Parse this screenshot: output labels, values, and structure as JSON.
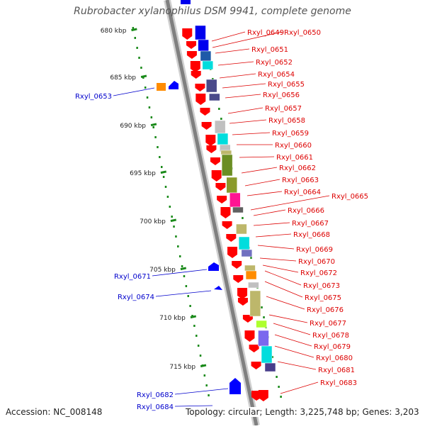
{
  "title": "Rubrobacter xylanophilus DSM 9941, complete genome",
  "footer": {
    "accession": "Accession: NC_008148",
    "summary": "Topology: circular; Length: 3,225,748 bp; Genes: 3,203"
  },
  "ruler": {
    "ticks": [
      {
        "label": "680 kbp",
        "kbp": 680
      },
      {
        "label": "685 kbp",
        "kbp": 685
      },
      {
        "label": "690 kbp",
        "kbp": 690
      },
      {
        "label": "695 kbp",
        "kbp": 695
      },
      {
        "label": "700 kbp",
        "kbp": 700
      },
      {
        "label": "705 kbp",
        "kbp": 705
      },
      {
        "label": "710 kbp",
        "kbp": 710
      },
      {
        "label": "715 kbp",
        "kbp": 715
      }
    ]
  },
  "genes_right": [
    {
      "name": "Rxyl_0649"
    },
    {
      "name": "Rxyl_0650"
    },
    {
      "name": "Rxyl_0651"
    },
    {
      "name": "Rxyl_0652"
    },
    {
      "name": "Rxyl_0654"
    },
    {
      "name": "Rxyl_0655"
    },
    {
      "name": "Rxyl_0656"
    },
    {
      "name": "Rxyl_0657"
    },
    {
      "name": "Rxyl_0658"
    },
    {
      "name": "Rxyl_0659"
    },
    {
      "name": "Rxyl_0660"
    },
    {
      "name": "Rxyl_0661"
    },
    {
      "name": "Rxyl_0662"
    },
    {
      "name": "Rxyl_0663"
    },
    {
      "name": "Rxyl_0664"
    },
    {
      "name": "Rxyl_0665"
    },
    {
      "name": "Rxyl_0666"
    },
    {
      "name": "Rxyl_0667"
    },
    {
      "name": "Rxyl_0668"
    },
    {
      "name": "Rxyl_0669"
    },
    {
      "name": "Rxyl_0670"
    },
    {
      "name": "Rxyl_0672"
    },
    {
      "name": "Rxyl_0673"
    },
    {
      "name": "Rxyl_0675"
    },
    {
      "name": "Rxyl_0676"
    },
    {
      "name": "Rxyl_0677"
    },
    {
      "name": "Rxyl_0678"
    },
    {
      "name": "Rxyl_0679"
    },
    {
      "name": "Rxyl_0680"
    },
    {
      "name": "Rxyl_0681"
    },
    {
      "name": "Rxyl_0683"
    }
  ],
  "genes_left": [
    {
      "name": "Rxyl_0653"
    },
    {
      "name": "Rxyl_0671"
    },
    {
      "name": "Rxyl_0674"
    },
    {
      "name": "Rxyl_0682"
    },
    {
      "name": "Rxyl_0684"
    }
  ],
  "colors": {
    "forward_gene": "#ff0000",
    "reverse_gene": "#0000ff",
    "orange_gene": "#ff8c00",
    "backbone": "#808080",
    "ruler_dots": "#1a8a1a",
    "right_label": "#dd0000",
    "left_label": "#0000cc"
  },
  "cog_colors": [
    "#0000ee",
    "#1e5aa8",
    "#6a8ab8",
    "#00dddd",
    "#4a4a8a",
    "#c0c0c0",
    "#8a9a2a",
    "#6b8e23",
    "#ff1493",
    "#606060",
    "#bdb76b",
    "#7070c0",
    "#ff8c00",
    "#adff2f",
    "#7b68ee",
    "#483d8b"
  ]
}
